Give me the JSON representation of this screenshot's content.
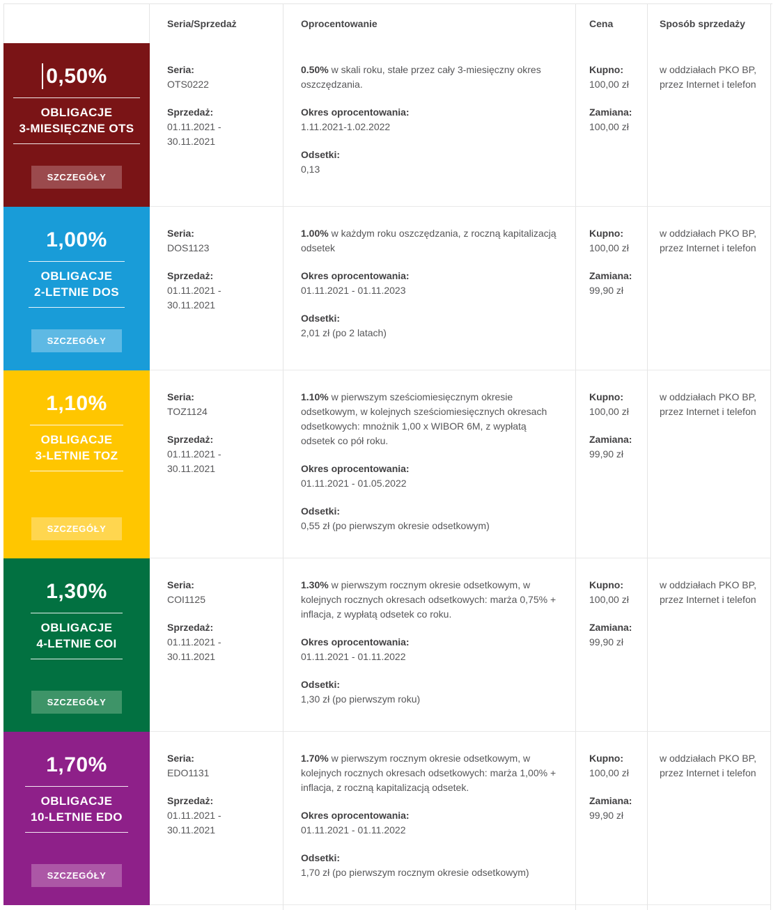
{
  "table": {
    "headers": [
      "",
      "Seria/Sprzedaż",
      "Oprocentowanie",
      "Cena",
      "Sposób sprzedaży"
    ],
    "labels": {
      "seria": "Seria:",
      "sprzedaz": "Sprzedaż:",
      "okres": "Okres oprocentowania:",
      "odsetki": "Odsetki:",
      "kupno": "Kupno:",
      "zamiana": "Zamiana:",
      "details": "SZCZEGÓŁY"
    },
    "rows": [
      {
        "card": {
          "rate": "0,50%",
          "title1": "OBLIGACJE",
          "title2": "3-MIESIĘCZNE OTS",
          "bg": "#7A1416",
          "button_bg": "#9B4A4D",
          "text_cursor": true
        },
        "seria": "OTS0222",
        "sprzedaz": "01.11.2021 - 30.11.2021",
        "oprocentowanie": {
          "rate": "0.50%",
          "desc": " w skali roku, stałe przez cały 3-miesięczny okres oszczędzania."
        },
        "okres": "1.11.2021-1.02.2022",
        "odsetki": "0,13",
        "kupno": "100,00 zł",
        "zamiana": "100,00 zł",
        "sposob": "w oddziałach PKO BP, przez Internet i telefon"
      },
      {
        "card": {
          "rate": "1,00%",
          "title1": "OBLIGACJE",
          "title2": "2-LETNIE DOS",
          "bg": "#199CD8",
          "button_bg": "#5EB9E4",
          "text_cursor": false
        },
        "seria": "DOS1123",
        "sprzedaz": "01.11.2021 - 30.11.2021",
        "oprocentowanie": {
          "rate": "1.00%",
          "desc": " w każdym roku oszczędzania, z roczną kapitalizacją odsetek"
        },
        "okres": "01.11.2021 - 01.11.2023",
        "odsetki": "2,01 zł (po 2 latach)",
        "kupno": "100,00 zł",
        "zamiana": "99,90 zł",
        "sposob": "w oddziałach PKO BP, przez Internet i telefon"
      },
      {
        "card": {
          "rate": "1,10%",
          "title1": "OBLIGACJE",
          "title2": "3-LETNIE TOZ",
          "bg": "#FFC600",
          "button_bg": "#FFD64F",
          "text_cursor": false
        },
        "seria": "TOZ1124",
        "sprzedaz": "01.11.2021 - 30.11.2021",
        "oprocentowanie": {
          "rate": "1.10%",
          "desc": " w pierwszym sześciomiesięcznym okresie odsetkowym, w kolejnych sześciomiesięcznych okresach odsetkowych: mnożnik 1,00 x WIBOR 6M, z wypłatą odsetek co pół roku."
        },
        "okres": "01.11.2021 - 01.05.2022",
        "odsetki": "0,55 zł (po pierwszym okresie odsetkowym)",
        "kupno": "100,00 zł",
        "zamiana": "99,90 zł",
        "sposob": "w oddziałach PKO BP, przez Internet i telefon"
      },
      {
        "card": {
          "rate": "1,30%",
          "title1": "OBLIGACJE",
          "title2": "4-LETNIE COI",
          "bg": "#027141",
          "button_bg": "#3E9468",
          "text_cursor": false
        },
        "seria": "COI1125",
        "sprzedaz": "01.11.2021 - 30.11.2021",
        "oprocentowanie": {
          "rate": "1.30%",
          "desc": " w pierwszym rocznym okresie odsetkowym, w kolejnych rocznych okresach odsetkowych: marża 0,75% + inflacja, z wypłatą odsetek co roku."
        },
        "okres": "01.11.2021 - 01.11.2022",
        "odsetki": "1,30 zł (po pierwszym roku)",
        "kupno": "100,00 zł",
        "zamiana": "99,90 zł",
        "sposob": "w oddziałach PKO BP, przez Internet i telefon"
      },
      {
        "card": {
          "rate": "1,70%",
          "title1": "OBLIGACJE",
          "title2": "10-LETNIE EDO",
          "bg": "#8E2089",
          "button_bg": "#AC57A6",
          "text_cursor": false
        },
        "seria": "EDO1131",
        "sprzedaz": "01.11.2021 - 30.11.2021",
        "oprocentowanie": {
          "rate": "1.70%",
          "desc": " w pierwszym rocznym okresie odsetkowym, w kolejnych rocznych okresach odsetkowych: marża 1,00% + inflacja, z roczną kapitalizacją odsetek."
        },
        "okres": "01.11.2021 - 01.11.2022",
        "odsetki": "1,70 zł (po pierwszym rocznym okresie odsetkowym)",
        "kupno": "100,00 zł",
        "zamiana": "99,90 zł",
        "sposob": "w oddziałach PKO BP, przez Internet i telefon"
      }
    ]
  }
}
